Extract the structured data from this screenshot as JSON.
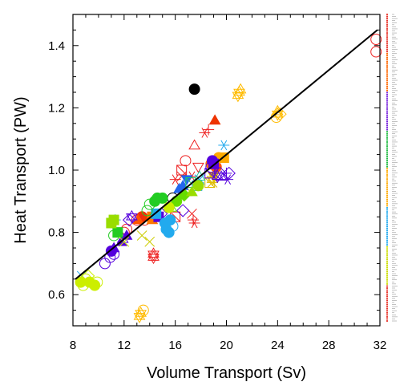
{
  "chart_data": {
    "type": "scatter",
    "title": "",
    "xlabel": "Volume Transport (Sv)",
    "ylabel": "Heat Transport (PW)",
    "xlim": [
      8,
      32
    ],
    "ylim": [
      0.5,
      1.5
    ],
    "x_ticks": [
      "8",
      "12",
      "16",
      "20",
      "24",
      "28",
      "32"
    ],
    "y_ticks": [
      "0.6",
      "0.8",
      "1.0",
      "1.2",
      "1.4"
    ],
    "x_tick_values": [
      8,
      12,
      16,
      20,
      24,
      28,
      32
    ],
    "y_tick_values": [
      0.6,
      0.8,
      1.0,
      1.2,
      1.4
    ],
    "grid": false,
    "legend": "right side, unreadable small labels",
    "regression_line": {
      "x": [
        8.2,
        31.8
      ],
      "y": [
        0.65,
        1.45
      ]
    },
    "points": [
      {
        "x": 17.5,
        "y": 1.26,
        "color": "#000000",
        "marker": "filled-circle"
      },
      {
        "x": 15.8,
        "y": 0.91,
        "color": "#000000",
        "marker": "open-circle"
      },
      {
        "x": 31.7,
        "y": 1.38,
        "color": "#ee2222",
        "marker": "open-circle"
      },
      {
        "x": 31.7,
        "y": 1.42,
        "color": "#ee2222",
        "marker": "open-circle"
      },
      {
        "x": 19.1,
        "y": 1.16,
        "color": "#ee3300",
        "marker": "filled-triangle"
      },
      {
        "x": 17.5,
        "y": 1.08,
        "color": "#ee2222",
        "marker": "open-triangle"
      },
      {
        "x": 18.3,
        "y": 1.12,
        "color": "#ee2222",
        "marker": "asterisk"
      },
      {
        "x": 18.6,
        "y": 1.13,
        "color": "#ee2222",
        "marker": "plus"
      },
      {
        "x": 16.8,
        "y": 1.03,
        "color": "#ee2222",
        "marker": "open-circle"
      },
      {
        "x": 16.5,
        "y": 1.0,
        "color": "#ee2222",
        "marker": "open-square"
      },
      {
        "x": 16.5,
        "y": 0.98,
        "color": "#ee2222",
        "marker": "x"
      },
      {
        "x": 17.8,
        "y": 1.01,
        "color": "#ee2222",
        "marker": "open-triangle-down"
      },
      {
        "x": 17.3,
        "y": 0.98,
        "color": "#ee2222",
        "marker": "asterisk"
      },
      {
        "x": 16.0,
        "y": 0.97,
        "color": "#ee2222",
        "marker": "asterisk"
      },
      {
        "x": 13.4,
        "y": 0.85,
        "color": "#ee3300",
        "marker": "filled-circle"
      },
      {
        "x": 13.6,
        "y": 0.84,
        "color": "#ee2222",
        "marker": "open-circle"
      },
      {
        "x": 13.0,
        "y": 0.84,
        "color": "#ee2222",
        "marker": "open-circle"
      },
      {
        "x": 12.0,
        "y": 0.8,
        "color": "#ee2222",
        "marker": "open-circle"
      },
      {
        "x": 12.2,
        "y": 0.81,
        "color": "#ee2222",
        "marker": "open-circle"
      },
      {
        "x": 14.3,
        "y": 0.72,
        "color": "#ee2222",
        "marker": "star6"
      },
      {
        "x": 14.3,
        "y": 0.73,
        "color": "#ee2222",
        "marker": "star6"
      },
      {
        "x": 17.5,
        "y": 0.83,
        "color": "#ee2222",
        "marker": "asterisk"
      },
      {
        "x": 17.4,
        "y": 0.84,
        "color": "#ee2222",
        "marker": "plus"
      },
      {
        "x": 17.3,
        "y": 0.86,
        "color": "#ee2222",
        "marker": "x"
      },
      {
        "x": 16.0,
        "y": 0.85,
        "color": "#ee2222",
        "marker": "open-square"
      },
      {
        "x": 19.1,
        "y": 1.03,
        "color": "#ff5500",
        "marker": "filled-star"
      },
      {
        "x": 19.2,
        "y": 1.01,
        "color": "#ff5500",
        "marker": "filled-circle"
      },
      {
        "x": 18.8,
        "y": 1.02,
        "color": "#ff7700",
        "marker": "filled-circle"
      },
      {
        "x": 13.1,
        "y": 0.84,
        "color": "#ff5500",
        "marker": "filled-triangle"
      },
      {
        "x": 14.2,
        "y": 0.84,
        "color": "#ff7700",
        "marker": "filled-triangle"
      },
      {
        "x": 14.2,
        "y": 0.85,
        "color": "#ff7700",
        "marker": "filled-square"
      },
      {
        "x": 19.4,
        "y": 1.04,
        "color": "#ffaa00",
        "marker": "filled-circle"
      },
      {
        "x": 19.8,
        "y": 1.04,
        "color": "#ffaa00",
        "marker": "filled-square"
      },
      {
        "x": 21.0,
        "y": 1.25,
        "color": "#ffbb00",
        "marker": "star6"
      },
      {
        "x": 20.9,
        "y": 1.24,
        "color": "#ffbb00",
        "marker": "star6"
      },
      {
        "x": 21.1,
        "y": 1.26,
        "color": "#ffbb00",
        "marker": "open-triangle"
      },
      {
        "x": 24.0,
        "y": 1.18,
        "color": "#ffbb00",
        "marker": "star6"
      },
      {
        "x": 23.9,
        "y": 1.17,
        "color": "#ffbb00",
        "marker": "open-circle"
      },
      {
        "x": 24.0,
        "y": 1.19,
        "color": "#ffbb00",
        "marker": "open-triangle"
      },
      {
        "x": 24.2,
        "y": 1.18,
        "color": "#ffbb00",
        "marker": "open-diamond"
      },
      {
        "x": 13.3,
        "y": 0.54,
        "color": "#ffbb00",
        "marker": "star6"
      },
      {
        "x": 13.5,
        "y": 0.55,
        "color": "#ffbb00",
        "marker": "open-circle"
      },
      {
        "x": 13.2,
        "y": 0.53,
        "color": "#ffbb00",
        "marker": "star6"
      },
      {
        "x": 16.9,
        "y": 0.93,
        "color": "#ffbb00",
        "marker": "open-triangle"
      },
      {
        "x": 18.9,
        "y": 0.97,
        "color": "#ddbb00",
        "marker": "star6"
      },
      {
        "x": 19.0,
        "y": 0.98,
        "color": "#ddbb00",
        "marker": "filled-triangle-down"
      },
      {
        "x": 18.7,
        "y": 0.96,
        "color": "#ddbb00",
        "marker": "open-square"
      },
      {
        "x": 18.9,
        "y": 0.96,
        "color": "#ddbb00",
        "marker": "x"
      },
      {
        "x": 14.0,
        "y": 0.77,
        "color": "#cccc00",
        "marker": "x"
      },
      {
        "x": 13.4,
        "y": 0.79,
        "color": "#cccc00",
        "marker": "x"
      },
      {
        "x": 18.9,
        "y": 1.03,
        "color": "#5500dd",
        "marker": "filled-circle"
      },
      {
        "x": 19.0,
        "y": 1.02,
        "color": "#5500dd",
        "marker": "filled-square"
      },
      {
        "x": 19.5,
        "y": 0.99,
        "color": "#5500dd",
        "marker": "open-diamond"
      },
      {
        "x": 20.2,
        "y": 0.99,
        "color": "#5500dd",
        "marker": "open-diamond"
      },
      {
        "x": 18.8,
        "y": 1.01,
        "color": "#5500dd",
        "marker": "open-circle"
      },
      {
        "x": 19.3,
        "y": 0.98,
        "color": "#5500dd",
        "marker": "star6"
      },
      {
        "x": 19.6,
        "y": 0.98,
        "color": "#5500dd",
        "marker": "open-triangle"
      },
      {
        "x": 20.1,
        "y": 0.97,
        "color": "#5500dd",
        "marker": "asterisk"
      },
      {
        "x": 18.7,
        "y": 0.99,
        "color": "#5500dd",
        "marker": "open-square"
      },
      {
        "x": 20.0,
        "y": 0.99,
        "color": "#5500dd",
        "marker": "plus"
      },
      {
        "x": 11.0,
        "y": 0.74,
        "color": "#5500dd",
        "marker": "filled-circle"
      },
      {
        "x": 11.2,
        "y": 0.73,
        "color": "#5500dd",
        "marker": "open-circle"
      },
      {
        "x": 10.9,
        "y": 0.72,
        "color": "#5500dd",
        "marker": "open-circle"
      },
      {
        "x": 11.2,
        "y": 0.75,
        "color": "#5500dd",
        "marker": "filled-triangle"
      },
      {
        "x": 11.8,
        "y": 0.77,
        "color": "#5500dd",
        "marker": "filled-triangle"
      },
      {
        "x": 11.9,
        "y": 0.78,
        "color": "#5500dd",
        "marker": "open-triangle"
      },
      {
        "x": 12.2,
        "y": 0.79,
        "color": "#5500dd",
        "marker": "filled-triangle"
      },
      {
        "x": 10.5,
        "y": 0.7,
        "color": "#5500dd",
        "marker": "open-circle"
      },
      {
        "x": 12.4,
        "y": 0.84,
        "color": "#5500dd",
        "marker": "open-diamond"
      },
      {
        "x": 12.6,
        "y": 0.85,
        "color": "#5500dd",
        "marker": "star6"
      },
      {
        "x": 14.7,
        "y": 0.85,
        "color": "#5500dd",
        "marker": "filled-square"
      },
      {
        "x": 14.9,
        "y": 0.86,
        "color": "#5500dd",
        "marker": "open-diamond"
      },
      {
        "x": 16.6,
        "y": 0.87,
        "color": "#5500dd",
        "marker": "open-diamond"
      },
      {
        "x": 16.9,
        "y": 0.97,
        "color": "#2266ee",
        "marker": "filled-triangle-down"
      },
      {
        "x": 16.6,
        "y": 0.95,
        "color": "#2266ee",
        "marker": "filled-triangle"
      },
      {
        "x": 16.3,
        "y": 0.94,
        "color": "#2266ee",
        "marker": "filled-triangle"
      },
      {
        "x": 19.8,
        "y": 1.08,
        "color": "#22aaee",
        "marker": "asterisk"
      },
      {
        "x": 17.9,
        "y": 0.97,
        "color": "#22aaee",
        "marker": "x"
      },
      {
        "x": 17.7,
        "y": 0.95,
        "color": "#22aaee",
        "marker": "open-square"
      },
      {
        "x": 17.8,
        "y": 0.96,
        "color": "#22aaee",
        "marker": "plus"
      },
      {
        "x": 15.3,
        "y": 0.81,
        "color": "#22aaee",
        "marker": "filled-circle"
      },
      {
        "x": 15.5,
        "y": 0.8,
        "color": "#22aaee",
        "marker": "filled-circle"
      },
      {
        "x": 15.8,
        "y": 0.82,
        "color": "#22aaee",
        "marker": "open-circle"
      },
      {
        "x": 15.2,
        "y": 0.83,
        "color": "#22aaee",
        "marker": "filled-circle"
      },
      {
        "x": 15.6,
        "y": 0.84,
        "color": "#22aaee",
        "marker": "filled-circle"
      },
      {
        "x": 14.5,
        "y": 0.86,
        "color": "#22aaee",
        "marker": "filled-square"
      },
      {
        "x": 8.7,
        "y": 0.66,
        "color": "#22aaee",
        "marker": "x"
      },
      {
        "x": 11.3,
        "y": 0.84,
        "color": "#22aaee",
        "marker": "plus"
      },
      {
        "x": 17.9,
        "y": 0.98,
        "color": "#22ccaa",
        "marker": "open-triangle"
      },
      {
        "x": 17.2,
        "y": 0.96,
        "color": "#22cc66",
        "marker": "open-square"
      },
      {
        "x": 15.0,
        "y": 0.91,
        "color": "#22cc22",
        "marker": "filled-circle"
      },
      {
        "x": 14.4,
        "y": 0.9,
        "color": "#22cc22",
        "marker": "filled-circle"
      },
      {
        "x": 14.0,
        "y": 0.89,
        "color": "#22cc22",
        "marker": "open-circle"
      },
      {
        "x": 13.8,
        "y": 0.87,
        "color": "#22cc22",
        "marker": "open-circle"
      },
      {
        "x": 11.2,
        "y": 0.79,
        "color": "#22cc22",
        "marker": "open-circle"
      },
      {
        "x": 11.5,
        "y": 0.8,
        "color": "#22cc22",
        "marker": "filled-square"
      },
      {
        "x": 14.6,
        "y": 0.91,
        "color": "#22cc22",
        "marker": "filled-circle"
      },
      {
        "x": 16.7,
        "y": 0.92,
        "color": "#66dd00",
        "marker": "filled-diamond"
      },
      {
        "x": 16.1,
        "y": 0.9,
        "color": "#66dd00",
        "marker": "filled-circle"
      },
      {
        "x": 15.7,
        "y": 0.88,
        "color": "#66dd00",
        "marker": "open-triangle"
      },
      {
        "x": 17.8,
        "y": 0.95,
        "color": "#99dd00",
        "marker": "filled-circle"
      },
      {
        "x": 17.3,
        "y": 0.93,
        "color": "#99dd00",
        "marker": "filled-triangle"
      },
      {
        "x": 11.2,
        "y": 0.84,
        "color": "#99dd00",
        "marker": "filled-square"
      },
      {
        "x": 11.0,
        "y": 0.83,
        "color": "#99dd00",
        "marker": "filled-square"
      },
      {
        "x": 8.6,
        "y": 0.64,
        "color": "#ccee00",
        "marker": "filled-circle"
      },
      {
        "x": 9.0,
        "y": 0.65,
        "color": "#ccee00",
        "marker": "open-circle"
      },
      {
        "x": 9.3,
        "y": 0.64,
        "color": "#ccee00",
        "marker": "filled-circle"
      },
      {
        "x": 9.7,
        "y": 0.63,
        "color": "#ccee00",
        "marker": "filled-circle"
      },
      {
        "x": 9.9,
        "y": 0.64,
        "color": "#ccee00",
        "marker": "open-circle"
      },
      {
        "x": 8.8,
        "y": 0.63,
        "color": "#ccee00",
        "marker": "open-circle"
      },
      {
        "x": 9.2,
        "y": 0.66,
        "color": "#ccee00",
        "marker": "open-diamond"
      },
      {
        "x": 15.5,
        "y": 0.88,
        "color": "#ccee00",
        "marker": "filled-circle"
      },
      {
        "x": 12.0,
        "y": 0.77,
        "color": "#ccee00",
        "marker": "x"
      }
    ],
    "legend_colors": [
      "#e8332a",
      "#ff6600",
      "#7722dd",
      "#22bb44",
      "#ffaa00",
      "#22aaee",
      "#ccdd00",
      "#e8332a"
    ]
  }
}
